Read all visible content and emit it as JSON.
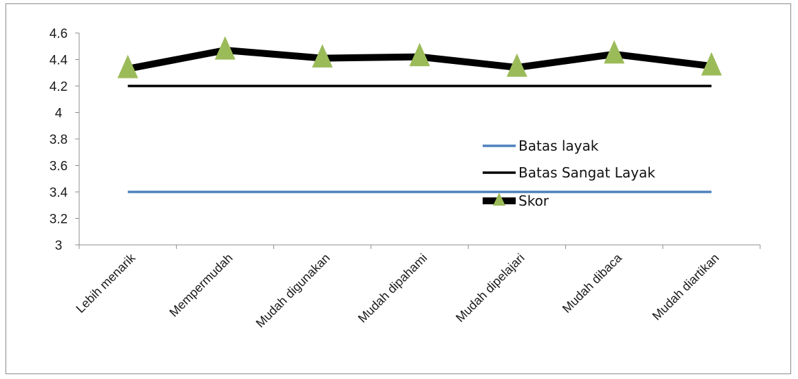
{
  "chart_data": {
    "type": "line",
    "categories": [
      "Lebih menarik",
      "Mempermudah",
      "Mudah digunakan",
      "Mudah dipahami",
      "Mudah dipelajari",
      "Mudah dibaca",
      "Mudah diartikan"
    ],
    "series": [
      {
        "name": "Batas layak",
        "values": [
          3.4,
          3.4,
          3.4,
          3.4,
          3.4,
          3.4,
          3.4
        ],
        "color": "#4f81bd",
        "marker": "none"
      },
      {
        "name": "Batas Sangat Layak",
        "values": [
          4.2,
          4.2,
          4.2,
          4.2,
          4.2,
          4.2,
          4.2
        ],
        "color": "#000000",
        "marker": "none"
      },
      {
        "name": "Skor",
        "values": [
          4.33,
          4.47,
          4.41,
          4.42,
          4.34,
          4.44,
          4.35
        ],
        "color": "#000000",
        "marker": "triangle",
        "marker_color": "#9bbb59"
      }
    ],
    "ylim": [
      3,
      4.6
    ],
    "yticks": [
      "4.6",
      "4.4",
      "4.2",
      "4",
      "3.8",
      "3.6",
      "3.4",
      "3.2",
      "3"
    ],
    "title": "",
    "xlabel": "",
    "ylabel": "",
    "legend": "right",
    "grid": false
  }
}
